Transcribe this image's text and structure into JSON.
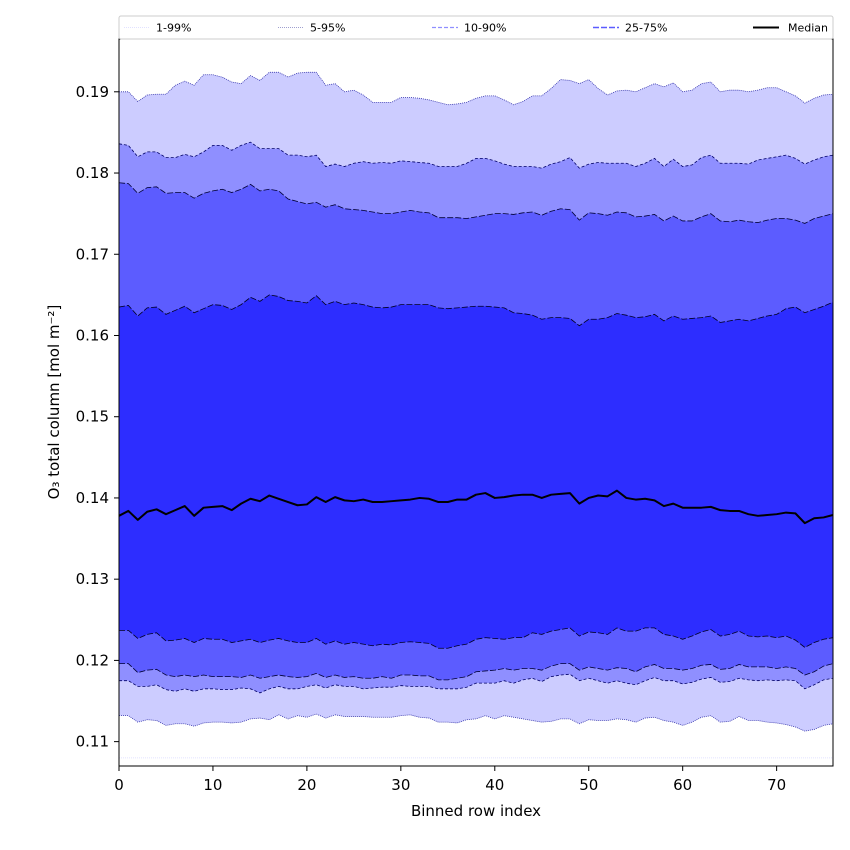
{
  "chart_data": {
    "type": "area",
    "title": "",
    "xlabel": "Binned row index",
    "ylabel": "O₃ total column [mol m⁻²]",
    "xlim": [
      0,
      76
    ],
    "ylim": [
      0.107,
      0.1965
    ],
    "xticks": [
      0,
      10,
      20,
      30,
      40,
      50,
      60,
      70
    ],
    "yticks": [
      0.11,
      0.12,
      0.13,
      0.14,
      0.15,
      0.16,
      0.17,
      0.18,
      0.19
    ],
    "ytick_labels": [
      "0.11",
      "0.12",
      "0.13",
      "0.14",
      "0.15",
      "0.16",
      "0.17",
      "0.18",
      "0.19"
    ],
    "grid": false,
    "legend_position": "top",
    "x": [
      0,
      1,
      2,
      3,
      4,
      5,
      6,
      7,
      8,
      9,
      10,
      11,
      12,
      13,
      14,
      15,
      16,
      17,
      18,
      19,
      20,
      21,
      22,
      23,
      24,
      25,
      26,
      27,
      28,
      29,
      30,
      31,
      32,
      33,
      34,
      35,
      36,
      37,
      38,
      39,
      40,
      41,
      42,
      43,
      44,
      45,
      46,
      47,
      48,
      49,
      50,
      51,
      52,
      53,
      54,
      55,
      56,
      57,
      58,
      59,
      60,
      61,
      62,
      63,
      64,
      65,
      66,
      67,
      68,
      69,
      70,
      71,
      72,
      73,
      74,
      75,
      76
    ],
    "bands": [
      {
        "name": "1-99%",
        "color": "#ffffff",
        "edge_color": "#d8d8ff",
        "dash": "1,1",
        "upper": [
          0.19,
          0.19,
          0.1888,
          0.1896,
          0.1897,
          0.1897,
          0.1908,
          0.1913,
          0.1908,
          0.1921,
          0.1921,
          0.1918,
          0.1912,
          0.191,
          0.192,
          0.1914,
          0.1924,
          0.1924,
          0.1918,
          0.1923,
          0.1924,
          0.1924,
          0.1908,
          0.191,
          0.19,
          0.1902,
          0.1896,
          0.1887,
          0.1887,
          0.1887,
          0.1893,
          0.1893,
          0.1892,
          0.189,
          0.1887,
          0.1884,
          0.1885,
          0.1887,
          0.1892,
          0.1895,
          0.1895,
          0.189,
          0.1884,
          0.1888,
          0.1895,
          0.1895,
          0.1904,
          0.1915,
          0.1914,
          0.191,
          0.1915,
          0.1904,
          0.1896,
          0.1901,
          0.1902,
          0.19,
          0.1905,
          0.191,
          0.1906,
          0.1911,
          0.19,
          0.1902,
          0.191,
          0.1912,
          0.19,
          0.1902,
          0.1902,
          0.19,
          0.1902,
          0.1905,
          0.1905,
          0.19,
          0.1895,
          0.1886,
          0.1892,
          0.1896,
          0.1897
        ],
        "lower": [
          0.108,
          0.108,
          0.108,
          0.108,
          0.108,
          0.108,
          0.108,
          0.108,
          0.108,
          0.108,
          0.108,
          0.108,
          0.108,
          0.108,
          0.108,
          0.108,
          0.108,
          0.108,
          0.108,
          0.108,
          0.108,
          0.108,
          0.108,
          0.108,
          0.108,
          0.108,
          0.108,
          0.108,
          0.108,
          0.108,
          0.108,
          0.108,
          0.108,
          0.108,
          0.108,
          0.108,
          0.108,
          0.108,
          0.108,
          0.108,
          0.108,
          0.108,
          0.108,
          0.108,
          0.108,
          0.108,
          0.108,
          0.108,
          0.108,
          0.108,
          0.108,
          0.108,
          0.108,
          0.108,
          0.108,
          0.108,
          0.108,
          0.108,
          0.108,
          0.108,
          0.108,
          0.108,
          0.108,
          0.108,
          0.108,
          0.108,
          0.108,
          0.108,
          0.108,
          0.108,
          0.108,
          0.108,
          0.108,
          0.108,
          0.108,
          0.108,
          0.108
        ]
      },
      {
        "name": "5-95%",
        "color": "#ccccff",
        "edge_color": "#3333aa",
        "dash": "1,1",
        "upper": [
          0.19,
          0.19,
          0.1888,
          0.1896,
          0.1897,
          0.1897,
          0.1908,
          0.1913,
          0.1908,
          0.1921,
          0.1921,
          0.1918,
          0.1912,
          0.191,
          0.192,
          0.1914,
          0.1924,
          0.1924,
          0.1918,
          0.1923,
          0.1924,
          0.1924,
          0.1908,
          0.191,
          0.19,
          0.1902,
          0.1896,
          0.1887,
          0.1887,
          0.1887,
          0.1893,
          0.1893,
          0.1892,
          0.189,
          0.1887,
          0.1884,
          0.1885,
          0.1887,
          0.1892,
          0.1895,
          0.1895,
          0.189,
          0.1884,
          0.1888,
          0.1895,
          0.1895,
          0.1904,
          0.1915,
          0.1914,
          0.191,
          0.1915,
          0.1904,
          0.1896,
          0.1901,
          0.1902,
          0.19,
          0.1905,
          0.191,
          0.1906,
          0.1911,
          0.19,
          0.1902,
          0.191,
          0.1912,
          0.19,
          0.1902,
          0.1902,
          0.19,
          0.1902,
          0.1905,
          0.1905,
          0.19,
          0.1895,
          0.1886,
          0.1892,
          0.1896,
          0.1897
        ],
        "lower": [
          0.1132,
          0.1132,
          0.1124,
          0.1127,
          0.1126,
          0.112,
          0.1122,
          0.1122,
          0.1119,
          0.1123,
          0.1124,
          0.1124,
          0.1123,
          0.1124,
          0.1128,
          0.1129,
          0.1127,
          0.1133,
          0.1128,
          0.1132,
          0.113,
          0.1134,
          0.1129,
          0.1133,
          0.1131,
          0.1131,
          0.1131,
          0.113,
          0.113,
          0.113,
          0.1132,
          0.1133,
          0.113,
          0.1129,
          0.1124,
          0.1124,
          0.1123,
          0.1127,
          0.1128,
          0.1132,
          0.1128,
          0.1132,
          0.113,
          0.1128,
          0.1126,
          0.1124,
          0.1125,
          0.1128,
          0.1128,
          0.1122,
          0.1127,
          0.1126,
          0.1126,
          0.1128,
          0.1127,
          0.1124,
          0.1129,
          0.113,
          0.1126,
          0.1124,
          0.112,
          0.1124,
          0.113,
          0.1132,
          0.1124,
          0.1125,
          0.1131,
          0.1126,
          0.1126,
          0.1124,
          0.1123,
          0.1121,
          0.1118,
          0.1113,
          0.1115,
          0.112,
          0.1122
        ]
      },
      {
        "name": "10-90%",
        "color": "#8f8fff",
        "edge_color": "#000066",
        "dash": "3,2",
        "upper": [
          0.1836,
          0.1834,
          0.182,
          0.1826,
          0.1826,
          0.1819,
          0.1819,
          0.1823,
          0.182,
          0.1826,
          0.1834,
          0.1834,
          0.1828,
          0.1834,
          0.1838,
          0.183,
          0.183,
          0.183,
          0.1822,
          0.1822,
          0.182,
          0.1822,
          0.1808,
          0.1811,
          0.1808,
          0.1812,
          0.1814,
          0.1812,
          0.1813,
          0.1812,
          0.1815,
          0.1814,
          0.1813,
          0.1812,
          0.1808,
          0.1808,
          0.1808,
          0.1812,
          0.1818,
          0.1818,
          0.1815,
          0.1811,
          0.1808,
          0.1808,
          0.1808,
          0.1806,
          0.1811,
          0.1814,
          0.1819,
          0.1806,
          0.1811,
          0.1813,
          0.1812,
          0.1812,
          0.1812,
          0.1808,
          0.1812,
          0.1818,
          0.1808,
          0.1817,
          0.1808,
          0.181,
          0.1819,
          0.1822,
          0.1812,
          0.1812,
          0.1812,
          0.1811,
          0.1816,
          0.1818,
          0.182,
          0.1822,
          0.1818,
          0.1811,
          0.1816,
          0.182,
          0.1822
        ],
        "lower": [
          0.1175,
          0.1175,
          0.1168,
          0.1168,
          0.117,
          0.1164,
          0.1162,
          0.1165,
          0.1162,
          0.1165,
          0.1165,
          0.1164,
          0.1164,
          0.1166,
          0.1165,
          0.116,
          0.1165,
          0.1168,
          0.1165,
          0.1165,
          0.1168,
          0.117,
          0.1166,
          0.117,
          0.1168,
          0.1168,
          0.1165,
          0.1166,
          0.1167,
          0.1167,
          0.1169,
          0.1168,
          0.1168,
          0.1168,
          0.1165,
          0.1165,
          0.1165,
          0.1167,
          0.1172,
          0.1172,
          0.1172,
          0.1175,
          0.1172,
          0.1176,
          0.1178,
          0.1174,
          0.118,
          0.1182,
          0.1183,
          0.1175,
          0.1178,
          0.1175,
          0.1172,
          0.1175,
          0.1172,
          0.117,
          0.1175,
          0.1179,
          0.1175,
          0.1175,
          0.1171,
          0.1173,
          0.1177,
          0.1179,
          0.1173,
          0.1174,
          0.1178,
          0.1176,
          0.1175,
          0.1176,
          0.1175,
          0.1176,
          0.1175,
          0.1165,
          0.117,
          0.1176,
          0.1178
        ]
      },
      {
        "name": "25-75%",
        "color": "#5c5cff",
        "edge_color": "#000033",
        "dash": "6,2",
        "upper": [
          0.1788,
          0.1787,
          0.1775,
          0.1782,
          0.1783,
          0.1775,
          0.1776,
          0.1776,
          0.1769,
          0.1775,
          0.1778,
          0.178,
          0.1776,
          0.178,
          0.1786,
          0.1778,
          0.178,
          0.1778,
          0.1768,
          0.1765,
          0.1762,
          0.1764,
          0.1758,
          0.1761,
          0.1756,
          0.1755,
          0.1754,
          0.1752,
          0.175,
          0.175,
          0.1752,
          0.1754,
          0.1752,
          0.1751,
          0.1745,
          0.1745,
          0.1745,
          0.1744,
          0.1746,
          0.1748,
          0.175,
          0.175,
          0.1749,
          0.1751,
          0.1752,
          0.1748,
          0.1753,
          0.1756,
          0.1755,
          0.1742,
          0.1751,
          0.175,
          0.1748,
          0.1752,
          0.1751,
          0.1746,
          0.1747,
          0.1749,
          0.1741,
          0.1747,
          0.1741,
          0.1741,
          0.1746,
          0.175,
          0.1741,
          0.174,
          0.1742,
          0.174,
          0.1739,
          0.1742,
          0.1744,
          0.1744,
          0.1742,
          0.1738,
          0.1744,
          0.1747,
          0.175
        ],
        "lower": [
          0.1196,
          0.1196,
          0.1185,
          0.1188,
          0.1189,
          0.1182,
          0.118,
          0.1182,
          0.118,
          0.1182,
          0.118,
          0.118,
          0.118,
          0.1179,
          0.1182,
          0.1178,
          0.118,
          0.1182,
          0.118,
          0.1179,
          0.118,
          0.1184,
          0.1179,
          0.1182,
          0.1179,
          0.118,
          0.1178,
          0.1178,
          0.118,
          0.1178,
          0.1182,
          0.1182,
          0.1181,
          0.1181,
          0.1176,
          0.1176,
          0.1178,
          0.118,
          0.1186,
          0.1187,
          0.1188,
          0.119,
          0.1188,
          0.119,
          0.119,
          0.1188,
          0.1193,
          0.1196,
          0.1196,
          0.1188,
          0.1192,
          0.119,
          0.1188,
          0.1191,
          0.119,
          0.1186,
          0.1192,
          0.1195,
          0.119,
          0.119,
          0.1188,
          0.119,
          0.1194,
          0.1195,
          0.1189,
          0.119,
          0.1195,
          0.1192,
          0.1192,
          0.1192,
          0.119,
          0.1192,
          0.119,
          0.1182,
          0.1186,
          0.1193,
          0.1196
        ]
      },
      {
        "name": "",
        "color": "#2d2dff",
        "edge_color": "#000022",
        "dash": "6,2",
        "upper": [
          0.1635,
          0.1637,
          0.1624,
          0.1634,
          0.1635,
          0.1626,
          0.1631,
          0.1636,
          0.1628,
          0.1633,
          0.1638,
          0.1637,
          0.1632,
          0.1638,
          0.1647,
          0.1642,
          0.165,
          0.1648,
          0.1643,
          0.1642,
          0.164,
          0.1649,
          0.1638,
          0.1642,
          0.1638,
          0.164,
          0.1638,
          0.1635,
          0.1634,
          0.1635,
          0.1638,
          0.1638,
          0.1638,
          0.1638,
          0.1634,
          0.1633,
          0.1634,
          0.1635,
          0.1636,
          0.1636,
          0.1635,
          0.1634,
          0.1628,
          0.1627,
          0.1625,
          0.162,
          0.1622,
          0.1622,
          0.1621,
          0.1612,
          0.162,
          0.162,
          0.1622,
          0.1627,
          0.1625,
          0.1622,
          0.1623,
          0.1626,
          0.1618,
          0.1624,
          0.162,
          0.1621,
          0.1622,
          0.1624,
          0.1616,
          0.1618,
          0.162,
          0.1618,
          0.1621,
          0.1624,
          0.1626,
          0.1633,
          0.1635,
          0.1628,
          0.1632,
          0.1636,
          0.1641
        ],
        "lower": [
          0.1237,
          0.1237,
          0.1227,
          0.1232,
          0.1234,
          0.1224,
          0.1225,
          0.1227,
          0.1222,
          0.1227,
          0.1226,
          0.1226,
          0.1222,
          0.1224,
          0.1226,
          0.1222,
          0.1225,
          0.1227,
          0.1224,
          0.1222,
          0.1222,
          0.1227,
          0.122,
          0.1224,
          0.122,
          0.1222,
          0.122,
          0.1218,
          0.122,
          0.1219,
          0.1222,
          0.1223,
          0.1222,
          0.1221,
          0.1215,
          0.1215,
          0.1218,
          0.122,
          0.1226,
          0.1228,
          0.1227,
          0.1226,
          0.1228,
          0.1228,
          0.1234,
          0.1232,
          0.1236,
          0.1238,
          0.124,
          0.123,
          0.1235,
          0.1234,
          0.1232,
          0.124,
          0.1236,
          0.1236,
          0.124,
          0.124,
          0.1232,
          0.123,
          0.1226,
          0.123,
          0.1235,
          0.1238,
          0.123,
          0.1232,
          0.1236,
          0.123,
          0.1229,
          0.123,
          0.1228,
          0.123,
          0.1225,
          0.1216,
          0.1222,
          0.1226,
          0.1228
        ]
      }
    ],
    "median": {
      "name": "Median",
      "color": "#000000",
      "values": [
        0.1378,
        0.1384,
        0.1373,
        0.1383,
        0.1386,
        0.138,
        0.1385,
        0.139,
        0.1378,
        0.1388,
        0.1389,
        0.139,
        0.1385,
        0.1393,
        0.1399,
        0.1396,
        0.1403,
        0.1399,
        0.1395,
        0.1391,
        0.1392,
        0.1401,
        0.1395,
        0.1401,
        0.1397,
        0.1396,
        0.1398,
        0.1395,
        0.1395,
        0.1396,
        0.1397,
        0.1398,
        0.14,
        0.1399,
        0.1395,
        0.1395,
        0.1398,
        0.1398,
        0.1404,
        0.1406,
        0.14,
        0.1401,
        0.1403,
        0.1404,
        0.1404,
        0.14,
        0.1404,
        0.1405,
        0.1406,
        0.1393,
        0.14,
        0.1403,
        0.1402,
        0.1409,
        0.14,
        0.1398,
        0.1399,
        0.1397,
        0.139,
        0.1393,
        0.1388,
        0.1388,
        0.1388,
        0.1389,
        0.1385,
        0.1384,
        0.1384,
        0.138,
        0.1378,
        0.1379,
        0.138,
        0.1382,
        0.1381,
        0.1369,
        0.1375,
        0.1376,
        0.1379
      ]
    },
    "legend": [
      {
        "label": "1-99%",
        "color": "#d8d8ff",
        "dash": "1,1",
        "width": 0.8
      },
      {
        "label": "5-95%",
        "color": "#8080c0",
        "dash": "1,1",
        "width": 0.8
      },
      {
        "label": "10-90%",
        "color": "#8f8fff",
        "dash": "4,2",
        "width": 1.2
      },
      {
        "label": "25-75%",
        "color": "#5c5cff",
        "dash": "6,2",
        "width": 1.5
      },
      {
        "label": "Median",
        "color": "#000000",
        "dash": "",
        "width": 2
      }
    ]
  }
}
